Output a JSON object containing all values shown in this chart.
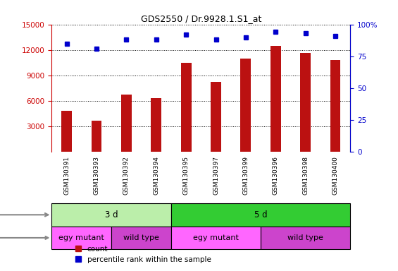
{
  "title": "GDS2550 / Dr.9928.1.S1_at",
  "samples": [
    "GSM130391",
    "GSM130393",
    "GSM130392",
    "GSM130394",
    "GSM130395",
    "GSM130397",
    "GSM130399",
    "GSM130396",
    "GSM130398",
    "GSM130400"
  ],
  "counts": [
    4800,
    3700,
    6700,
    6300,
    10500,
    8200,
    11000,
    12500,
    11600,
    10800
  ],
  "percentile_ranks": [
    85,
    81,
    88,
    88,
    92,
    88,
    90,
    94,
    93,
    91
  ],
  "bar_color": "#bb1111",
  "dot_color": "#0000cc",
  "ylim_left": [
    0,
    15000
  ],
  "yticks_left": [
    3000,
    6000,
    9000,
    12000,
    15000
  ],
  "ylim_right": [
    0,
    100
  ],
  "yticks_right": [
    0,
    25,
    50,
    75,
    100
  ],
  "age_labels": [
    {
      "text": "3 d",
      "start": 0,
      "end": 4,
      "color": "#bbeeaa"
    },
    {
      "text": "5 d",
      "start": 4,
      "end": 10,
      "color": "#33cc33"
    }
  ],
  "genotype_labels": [
    {
      "text": "egy mutant",
      "start": 0,
      "end": 2,
      "color": "#ff66ff"
    },
    {
      "text": "wild type",
      "start": 2,
      "end": 4,
      "color": "#cc44cc"
    },
    {
      "text": "egy mutant",
      "start": 4,
      "end": 7,
      "color": "#ff66ff"
    },
    {
      "text": "wild type",
      "start": 7,
      "end": 10,
      "color": "#cc44cc"
    }
  ],
  "legend_items": [
    {
      "label": "count",
      "color": "#bb1111"
    },
    {
      "label": "percentile rank within the sample",
      "color": "#0000cc"
    }
  ],
  "left_axis_color": "#cc0000",
  "right_axis_color": "#0000cc",
  "tick_bg_color": "#cccccc",
  "plot_bg_color": "#ffffff"
}
